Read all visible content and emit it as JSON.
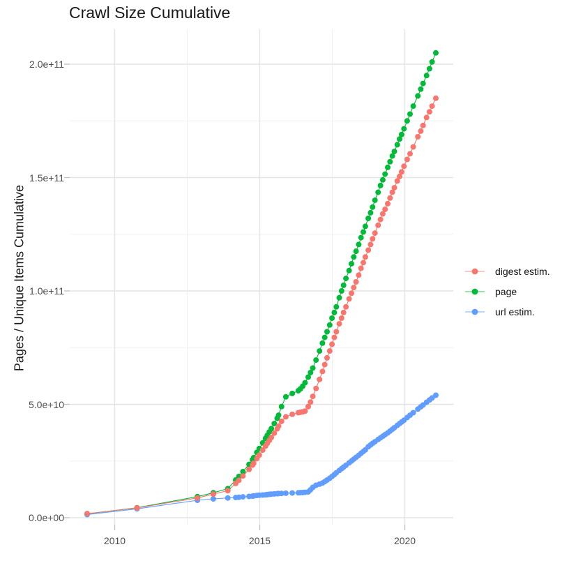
{
  "title": "Crawl Size Cumulative",
  "y_axis": {
    "label": "Pages / Unique Items Cumulative",
    "ticks": [
      "0.0e+00",
      "5.0e+10",
      "1.0e+11",
      "1.5e+11",
      "2.0e+11"
    ],
    "tick_values": [
      0,
      50000000000.0,
      100000000000.0,
      150000000000.0,
      200000000000.0
    ]
  },
  "x_axis": {
    "ticks": [
      "2010",
      "2015",
      "2020"
    ],
    "tick_values": [
      2010,
      2015,
      2020
    ]
  },
  "legend": {
    "position": "right",
    "items": [
      {
        "label": "digest estim.",
        "color": "#F8766D"
      },
      {
        "label": "page",
        "color": "#00BA38"
      },
      {
        "label": "url estim.",
        "color": "#619CFF"
      }
    ]
  },
  "chart_data": {
    "type": "line",
    "title": "Crawl Size Cumulative",
    "xlabel": "",
    "ylabel": "Pages / Unique Items Cumulative",
    "xlim": [
      2008.45,
      2021.67
    ],
    "ylim": [
      0,
      215250000000.0
    ],
    "x_major": [
      2010,
      2015,
      2020
    ],
    "x_minor": [
      2012.5,
      2017.5
    ],
    "y_major": [
      0,
      50000000000.0,
      100000000000.0,
      150000000000.0,
      200000000000.0
    ],
    "y_minor": [
      25000000000.0,
      75000000000.0,
      125000000000.0,
      175000000000.0
    ],
    "grid": true,
    "legend_position": "right",
    "x": [
      2009.05,
      2010.77,
      2012.85,
      2013.4,
      2013.9,
      2014.17,
      2014.28,
      2014.42,
      2014.63,
      2014.75,
      2014.79,
      2014.9,
      2014.98,
      2015.1,
      2015.2,
      2015.26,
      2015.33,
      2015.4,
      2015.5,
      2015.6,
      2015.65,
      2015.75,
      2015.9,
      2016.12,
      2016.33,
      2016.4,
      2016.48,
      2016.56,
      2016.67,
      2016.75,
      2016.83,
      2016.94,
      2017.06,
      2017.16,
      2017.24,
      2017.32,
      2017.41,
      2017.49,
      2017.57,
      2017.64,
      2017.74,
      2017.82,
      2017.89,
      2017.97,
      2018.08,
      2018.16,
      2018.24,
      2018.32,
      2018.41,
      2018.49,
      2018.57,
      2018.64,
      2018.74,
      2018.82,
      2018.89,
      2018.97,
      2019.08,
      2019.16,
      2019.24,
      2019.32,
      2019.41,
      2019.49,
      2019.57,
      2019.64,
      2019.74,
      2019.82,
      2019.89,
      2019.97,
      2020.08,
      2020.18,
      2020.29,
      2020.45,
      2020.55,
      2020.63,
      2020.75,
      2020.85,
      2020.94,
      2021.07
    ],
    "series": [
      {
        "name": "digest estim.",
        "color": "#F8766D",
        "values": [
          1800000000.0,
          4300000000.0,
          8700000000.0,
          10400000000.0,
          11900000000.0,
          15100000000.0,
          16500000000.0,
          18400000000.0,
          21300000000.0,
          23200000000.0,
          24000000000.0,
          26100000000.0,
          27600000000.0,
          29800000000.0,
          31600000000.0,
          32800000000.0,
          34100000000.0,
          35400000000.0,
          37300000000.0,
          39200000000.0,
          40400000000.0,
          42500000000.0,
          44500000000.0,
          45600000000.0,
          46300000000.0,
          46500000000.0,
          46700000000.0,
          47000000000.0,
          49000000000.0,
          51000000000.0,
          53500000000.0,
          57000000000.0,
          61000000000.0,
          64500000000.0,
          67500000000.0,
          70500000000.0,
          73500000000.0,
          76500000000.0,
          79500000000.0,
          82000000000.0,
          85500000000.0,
          88000000000.0,
          90500000000.0,
          93000000000.0,
          96500000000.0,
          99000000000.0,
          101500000000.0,
          104000000000.0,
          107000000000.0,
          110000000000.0,
          112500000000.0,
          115000000000.0,
          118000000000.0,
          120500000000.0,
          123000000000.0,
          125500000000.0,
          129000000000.0,
          131500000000.0,
          134000000000.0,
          136000000000.0,
          138500000000.0,
          141000000000.0,
          143500000000.0,
          145500000000.0,
          148500000000.0,
          150500000000.0,
          152500000000.0,
          155000000000.0,
          158000000000.0,
          160500000000.0,
          163500000000.0,
          168000000000.0,
          170500000000.0,
          173000000000.0,
          176500000000.0,
          179000000000.0,
          181500000000.0,
          185000000000.0
        ]
      },
      {
        "name": "page",
        "color": "#00BA38",
        "values": [
          1700000000.0,
          4400000000.0,
          9300000000.0,
          11000000000.0,
          12800000000.0,
          16600000000.0,
          18200000000.0,
          20300000000.0,
          23500000000.0,
          25600000000.0,
          26500000000.0,
          28800000000.0,
          30500000000.0,
          33000000000.0,
          35000000000.0,
          36300000000.0,
          37800000000.0,
          39300000000.0,
          41500000000.0,
          43800000000.0,
          45200000000.0,
          49000000000.0,
          53300000000.0,
          54800000000.0,
          56000000000.0,
          56800000000.0,
          58000000000.0,
          59500000000.0,
          62000000000.0,
          64000000000.0,
          66000000000.0,
          69500000000.0,
          73500000000.0,
          77000000000.0,
          79500000000.0,
          82000000000.0,
          85000000000.0,
          88000000000.0,
          90500000000.0,
          93000000000.0,
          97000000000.0,
          100000000000.0,
          102500000000.0,
          105500000000.0,
          109000000000.0,
          112000000000.0,
          115000000000.0,
          117500000000.0,
          120500000000.0,
          123500000000.0,
          126000000000.0,
          128500000000.0,
          132000000000.0,
          134500000000.0,
          137000000000.0,
          140000000000.0,
          143500000000.0,
          146500000000.0,
          149000000000.0,
          151500000000.0,
          154500000000.0,
          157000000000.0,
          159500000000.0,
          161500000000.0,
          164500000000.0,
          167000000000.0,
          169000000000.0,
          171500000000.0,
          175000000000.0,
          178000000000.0,
          181500000000.0,
          186000000000.0,
          189000000000.0,
          191500000000.0,
          195000000000.0,
          198000000000.0,
          201000000000.0,
          205000000000.0
        ]
      },
      {
        "name": "url estim.",
        "color": "#619CFF",
        "values": [
          1400000000.0,
          3900000000.0,
          7700000000.0,
          8300000000.0,
          8700000000.0,
          8900000000.0,
          9000000000.0,
          9200000000.0,
          9400000000.0,
          9500000000.0,
          9600000000.0,
          9800000000.0,
          9900000000.0,
          10000000000.0,
          10100000000.0,
          10200000000.0,
          10300000000.0,
          10400000000.0,
          10500000000.0,
          10600000000.0,
          10650000000.0,
          10700000000.0,
          10800000000.0,
          10900000000.0,
          11000000000.0,
          11050000000.0,
          11100000000.0,
          11200000000.0,
          11400000000.0,
          12300000000.0,
          13400000000.0,
          14300000000.0,
          14800000000.0,
          15300000000.0,
          15900000000.0,
          16600000000.0,
          17400000000.0,
          18200000000.0,
          19000000000.0,
          19800000000.0,
          20800000000.0,
          21600000000.0,
          22300000000.0,
          23100000000.0,
          24200000000.0,
          25000000000.0,
          25800000000.0,
          26600000000.0,
          27500000000.0,
          28400000000.0,
          29200000000.0,
          29900000000.0,
          31300000000.0,
          32100000000.0,
          32800000000.0,
          33500000000.0,
          34500000000.0,
          35200000000.0,
          35900000000.0,
          36600000000.0,
          37400000000.0,
          38200000000.0,
          39000000000.0,
          39700000000.0,
          40700000000.0,
          41500000000.0,
          42200000000.0,
          43000000000.0,
          44200000000.0,
          45200000000.0,
          46300000000.0,
          47900000000.0,
          48900000000.0,
          49700000000.0,
          50900000000.0,
          51900000000.0,
          52800000000.0,
          54000000000.0
        ]
      }
    ]
  }
}
